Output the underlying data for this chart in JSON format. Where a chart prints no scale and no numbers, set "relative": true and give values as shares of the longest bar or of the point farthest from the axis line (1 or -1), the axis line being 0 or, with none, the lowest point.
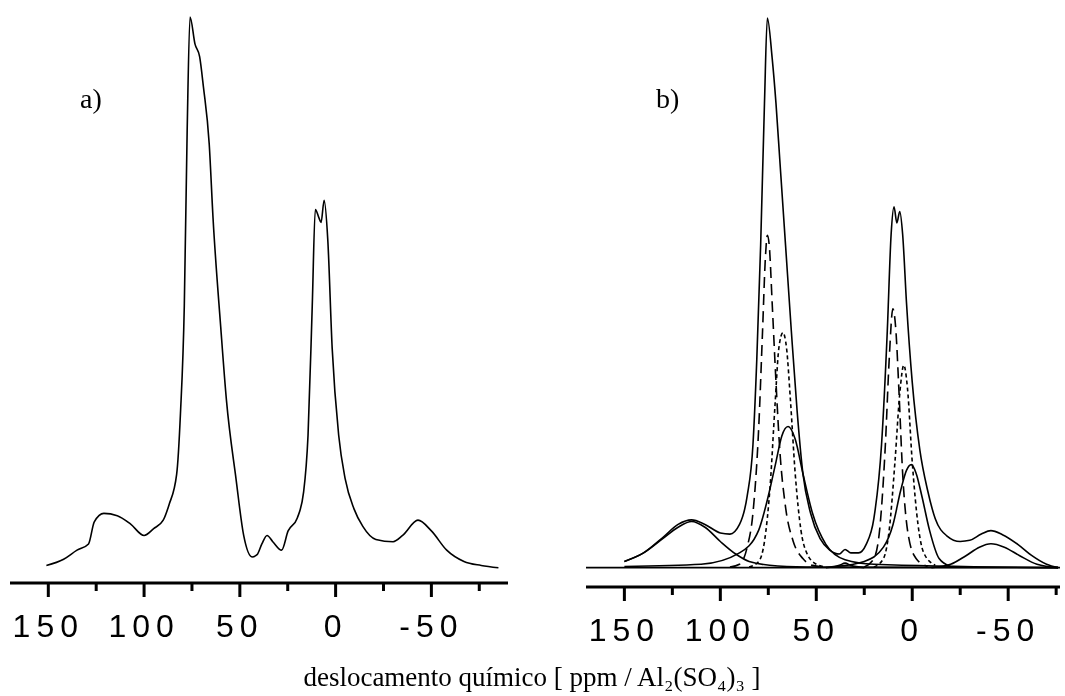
{
  "chart_data": [
    {
      "type": "line",
      "relative": true,
      "annotations": [
        "a)"
      ],
      "xlim": [
        170,
        -90
      ],
      "xticks": [
        150,
        {
          "value": 125,
          "label": null
        },
        100,
        {
          "value": 75,
          "label": null
        },
        50,
        {
          "value": 25,
          "label": null
        },
        0,
        {
          "value": -25,
          "label": null
        },
        -50,
        {
          "value": -75,
          "label": null
        }
      ],
      "tick_labels": "x",
      "line_style": "solid",
      "series": [
        {
          "color": "#000000",
          "x": [
            151,
            142,
            135,
            129,
            126,
            121,
            114,
            107,
            100,
            95,
            90,
            87,
            83,
            81,
            79,
            77.5,
            76,
            73.4,
            71,
            69,
            66,
            64,
            60,
            57,
            52,
            48,
            43.6,
            41,
            38.5,
            35.8,
            32.8,
            28.2,
            24.8,
            20,
            16.7,
            14.4,
            12.2,
            10.6,
            8.7,
            7.6,
            6,
            4.1,
            1.8,
            -1.6,
            -5,
            -9.6,
            -14.2,
            -21,
            -30,
            -35,
            -43,
            -50,
            -58,
            -67,
            -76,
            -85
          ],
          "values": [
            0.031,
            0.042,
            0.058,
            0.069,
            0.108,
            0.123,
            0.119,
            0.104,
            0.084,
            0.096,
            0.111,
            0.138,
            0.192,
            0.3,
            0.49,
            0.8,
            1,
            0.952,
            0.93,
            0.876,
            0.776,
            0.645,
            0.453,
            0.323,
            0.184,
            0.084,
            0.046,
            0.05,
            0.069,
            0.084,
            0.073,
            0.058,
            0.092,
            0.115,
            0.161,
            0.261,
            0.49,
            0.66,
            0.645,
            0.637,
            0.676,
            0.607,
            0.415,
            0.261,
            0.184,
            0.131,
            0.1,
            0.077,
            0.073,
            0.084,
            0.111,
            0.092,
            0.058,
            0.038,
            0.031,
            0.027
          ]
        }
      ]
    },
    {
      "type": "line",
      "relative": true,
      "annotations": [
        "b)"
      ],
      "xlabel": "deslocamento químico [ ppm / Al₂(SO₄)₃ ]",
      "xlim": [
        170,
        -77
      ],
      "xticks": [
        150,
        {
          "value": 125,
          "label": null
        },
        100,
        {
          "value": 75,
          "label": null
        },
        50,
        {
          "value": 25,
          "label": null
        },
        0,
        {
          "value": -25,
          "label": null
        },
        -50,
        {
          "value": -75,
          "label": null
        }
      ],
      "tick_labels": "x",
      "series": [
        {
          "color": "#000000",
          "line_style": "solid",
          "x": [
            150,
            140,
            130,
            122,
            115,
            108,
            100,
            95,
            90,
            86,
            83,
            81,
            79,
            77,
            75.5,
            73,
            71,
            69,
            66,
            63,
            60,
            57,
            53,
            48,
            43,
            38,
            35,
            32,
            28,
            24,
            20,
            16,
            13,
            11,
            9.5,
            8,
            6.5,
            5,
            3,
            0,
            -4,
            -8,
            -12,
            -18,
            -25,
            -30,
            -36,
            -41,
            -47,
            -55,
            -62,
            -70,
            -76
          ],
          "values": [
            0.045,
            0.06,
            0.087,
            0.11,
            0.118,
            0.11,
            0.095,
            0.093,
            0.11,
            0.16,
            0.25,
            0.4,
            0.6,
            0.85,
            1,
            0.93,
            0.85,
            0.75,
            0.6,
            0.45,
            0.31,
            0.2,
            0.13,
            0.085,
            0.065,
            0.058,
            0.066,
            0.06,
            0.06,
            0.075,
            0.12,
            0.25,
            0.45,
            0.62,
            0.668,
            0.64,
            0.66,
            0.62,
            0.5,
            0.36,
            0.24,
            0.17,
            0.12,
            0.09,
            0.08,
            0.082,
            0.093,
            0.099,
            0.092,
            0.075,
            0.056,
            0.04,
            0.034
          ]
        },
        {
          "color": "#000000",
          "line_style": "solid",
          "x": [
            150,
            140,
            130,
            122,
            115,
            108,
            100,
            92,
            85,
            70,
            50,
            -76
          ],
          "values": [
            0.045,
            0.06,
            0.085,
            0.105,
            0.115,
            0.105,
            0.08,
            0.058,
            0.045,
            0.037,
            0.035,
            0.034
          ]
        },
        {
          "color": "#000000",
          "line_style": "dashed",
          "x": [
            95,
            90,
            86,
            83,
            80,
            78,
            76.5,
            75.5,
            74.5,
            73,
            71,
            69,
            66,
            62,
            57,
            52,
            45
          ],
          "values": [
            0.035,
            0.04,
            0.07,
            0.13,
            0.28,
            0.45,
            0.58,
            0.618,
            0.6,
            0.5,
            0.36,
            0.24,
            0.14,
            0.08,
            0.05,
            0.038,
            0.035
          ]
        },
        {
          "color": "#000000",
          "line_style": "dotted",
          "x": [
            85,
            80,
            77,
            74,
            71.5,
            69.5,
            67.4,
            65.5,
            63.5,
            61,
            58,
            55,
            50,
            45
          ],
          "values": [
            0.035,
            0.045,
            0.08,
            0.18,
            0.32,
            0.42,
            0.447,
            0.42,
            0.33,
            0.2,
            0.1,
            0.06,
            0.04,
            0.035
          ]
        },
        {
          "color": "#000000",
          "line_style": "solid",
          "x": [
            150,
            110,
            90,
            80,
            75,
            71,
            68,
            64.7,
            61,
            57,
            52,
            45,
            35,
            20,
            -76
          ],
          "values": [
            0.036,
            0.04,
            0.06,
            0.1,
            0.16,
            0.22,
            0.265,
            0.282,
            0.26,
            0.2,
            0.13,
            0.075,
            0.048,
            0.04,
            0.034
          ]
        },
        {
          "color": "#000000",
          "line_style": "solid",
          "x": [
            45,
            38,
            35,
            32,
            25
          ],
          "values": [
            0.034,
            0.038,
            0.042,
            0.038,
            0.034
          ]
        },
        {
          "color": "#000000",
          "line_style": "dashed",
          "x": [
            25,
            20,
            17,
            14,
            12,
            10.1,
            8.5,
            7,
            5,
            2,
            -2,
            -8
          ],
          "values": [
            0.035,
            0.05,
            0.1,
            0.25,
            0.4,
            0.489,
            0.45,
            0.35,
            0.2,
            0.09,
            0.05,
            0.036
          ]
        },
        {
          "color": "#000000",
          "line_style": "dotted",
          "x": [
            20,
            15,
            12,
            9,
            6.5,
            4.4,
            2.5,
            0,
            -3,
            -6,
            -12
          ],
          "values": [
            0.035,
            0.05,
            0.1,
            0.22,
            0.34,
            0.39,
            0.35,
            0.22,
            0.11,
            0.06,
            0.038
          ]
        },
        {
          "color": "#000000",
          "line_style": "solid",
          "x": [
            40,
            25,
            15,
            10,
            6,
            3,
            0.5,
            -2,
            -5,
            -9,
            -14,
            -20
          ],
          "values": [
            0.036,
            0.045,
            0.07,
            0.11,
            0.17,
            0.205,
            0.215,
            0.2,
            0.16,
            0.1,
            0.05,
            0.036
          ]
        },
        {
          "color": "#000000",
          "line_style": "solid",
          "x": [
            -10,
            -20,
            -28,
            -35,
            -41,
            -48,
            -56,
            -65,
            -76
          ],
          "values": [
            0.034,
            0.04,
            0.055,
            0.07,
            0.076,
            0.07,
            0.055,
            0.04,
            0.034
          ]
        },
        {
          "color": "#000000",
          "line_style": "solid",
          "x": [
            170,
            -77
          ],
          "values": [
            0.034,
            0.034
          ]
        }
      ]
    }
  ]
}
